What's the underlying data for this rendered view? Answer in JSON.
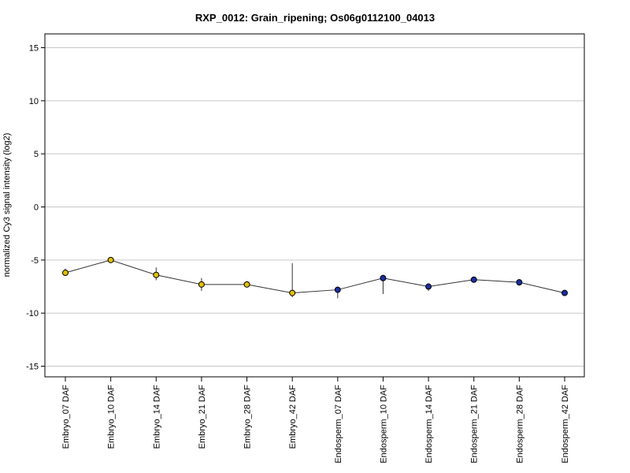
{
  "chart_data": {
    "type": "line",
    "title": "RXP_0012: Grain_ripening; Os06g0112100_04013",
    "xlabel": "",
    "ylabel": "normalized Cy3 signal intensity (log2)",
    "ylim": [
      -16,
      16.3
    ],
    "yticks": [
      -15,
      -10,
      -5,
      0,
      5,
      10,
      15
    ],
    "grid": true,
    "categories": [
      "Embryo_07 DAF",
      "Embryo_10 DAF",
      "Embryo_14 DAF",
      "Embryo_21 DAF",
      "Embryo_28 DAF",
      "Embryo_42 DAF",
      "Endosperm_07 DAF",
      "Endosperm_10 DAF",
      "Endosperm_14 DAF",
      "Endosperm_21 DAF",
      "Endosperm_28 DAF",
      "Endosperm_42 DAF"
    ],
    "series": [
      {
        "values": [
          -6.2,
          -5.0,
          -6.4,
          -7.3,
          -7.3,
          -8.1,
          -7.8,
          -6.7,
          -7.5,
          -6.85,
          -7.1,
          -8.1
        ],
        "error_low": [
          -6.5,
          -5.1,
          -6.9,
          -7.9,
          -7.5,
          -8.5,
          -8.6,
          -8.2,
          -7.9,
          -7.0,
          -7.4,
          -8.3
        ],
        "error_high": [
          -5.8,
          -4.85,
          -5.7,
          -6.7,
          -7.1,
          -5.3,
          -7.5,
          -6.4,
          -7.2,
          -6.7,
          -6.8,
          -7.9
        ],
        "point_colors": [
          "#e0c000",
          "#e0c000",
          "#e0c000",
          "#e0c000",
          "#e0c000",
          "#e0c000",
          "#1a2fa0",
          "#1a2fa0",
          "#1a2fa0",
          "#1a2fa0",
          "#1a2fa0",
          "#1a2fa0"
        ]
      }
    ]
  }
}
